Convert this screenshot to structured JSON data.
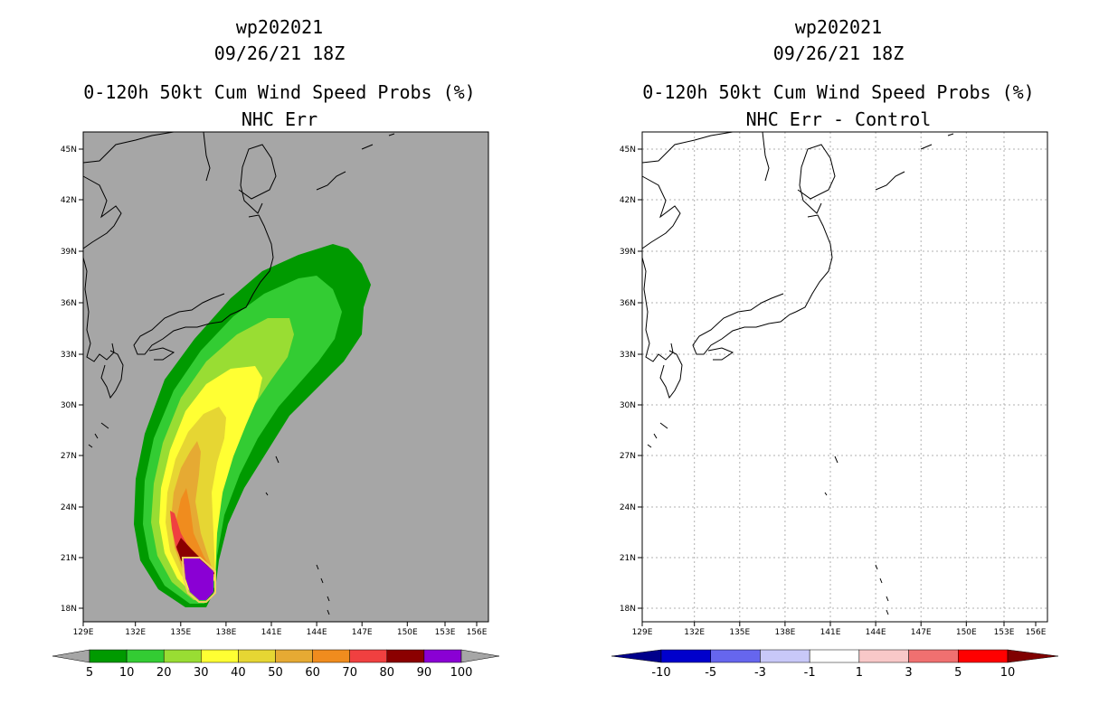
{
  "left_panel": {
    "title_line1": "wp202021",
    "title_line2": "09/26/21 18Z",
    "title_line3": "0-120h 50kt Cum Wind Speed Probs (%)",
    "title_line4": "NHC Err"
  },
  "right_panel": {
    "title_line1": "wp202021",
    "title_line2": "09/26/21 18Z",
    "title_line3": "0-120h 50kt Cum Wind Speed Probs (%)",
    "title_line4": "NHC Err - Control"
  },
  "axes": {
    "lon_ticks": [
      "129E",
      "132E",
      "135E",
      "138E",
      "141E",
      "144E",
      "147E",
      "150E",
      "153E",
      "156E"
    ],
    "lat_ticks": [
      "45N",
      "42N",
      "39N",
      "36N",
      "33N",
      "30N",
      "27N",
      "24N",
      "21N",
      "18N"
    ]
  },
  "colorbar_left": {
    "labels": [
      "5",
      "10",
      "20",
      "30",
      "40",
      "50",
      "60",
      "70",
      "80",
      "90",
      "100"
    ],
    "colors": [
      "#009a00",
      "#33cc33",
      "#99dd33",
      "#ffff33",
      "#e6d633",
      "#e6aa33",
      "#f08c1e",
      "#f04040",
      "#8b0000",
      "#8a00d4"
    ],
    "end_color": "#a6a6a6"
  },
  "colorbar_right": {
    "labels": [
      "-10",
      "-5",
      "-3",
      "-1",
      "1",
      "3",
      "5",
      "10"
    ],
    "colors": [
      "#0000cc",
      "#6666ee",
      "#c8c8f8",
      "#ffffff",
      "#f8c8c8",
      "#f07070",
      "#ff0000"
    ],
    "low_color": "#00008b",
    "high_color": "#800000"
  },
  "colors": {
    "map_background_left": "#a6a6a6",
    "map_background_right": "#ffffff",
    "coastline": "#000000"
  }
}
